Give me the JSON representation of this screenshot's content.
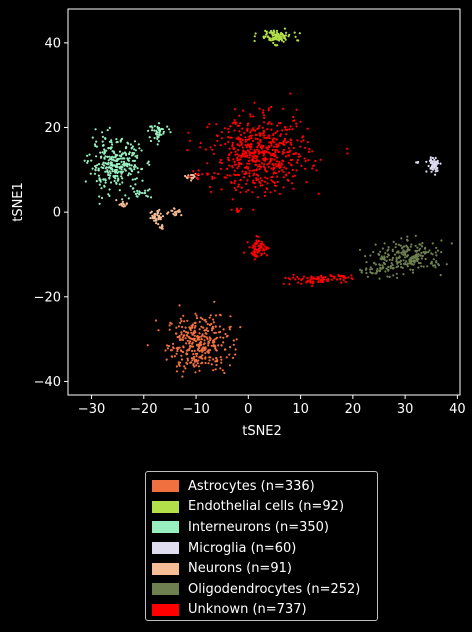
{
  "chart_data": {
    "type": "scatter",
    "xlabel": "tSNE2",
    "ylabel": "tSNE1",
    "xlim": [
      -34.5,
      40.5
    ],
    "ylim": [
      -43.2,
      48.0
    ],
    "xticks": [
      -30,
      -20,
      -10,
      0,
      10,
      20,
      30,
      40
    ],
    "yticks": [
      -40,
      -20,
      0,
      20,
      40
    ],
    "xtick_labels": [
      "−30",
      "−20",
      "−10",
      "0",
      "10",
      "20",
      "30",
      "40"
    ],
    "ytick_labels": [
      "−40",
      "−20",
      "0",
      "20",
      "40"
    ],
    "grid": false,
    "legend_position": "below",
    "series": [
      {
        "name": "Astrocytes (n=336)",
        "color": "#f07040",
        "clusters": [
          {
            "cx": -9.5,
            "cy": -31.0,
            "sx": 3.0,
            "sy": 3.3,
            "n": 336
          }
        ]
      },
      {
        "name": "Endothelial cells (n=92)",
        "color": "#b3e04a",
        "clusters": [
          {
            "cx": 5.2,
            "cy": 41.5,
            "sx": 1.6,
            "sy": 0.8,
            "n": 92
          }
        ]
      },
      {
        "name": "Interneurons (n=350)",
        "color": "#98f0c0",
        "clusters": [
          {
            "cx": -25.5,
            "cy": 11.0,
            "sx": 2.5,
            "sy": 3.0,
            "n": 290
          },
          {
            "cx": -17.0,
            "cy": 19.0,
            "sx": 1.0,
            "sy": 0.9,
            "n": 42
          },
          {
            "cx": -20.5,
            "cy": 4.5,
            "sx": 1.0,
            "sy": 0.5,
            "n": 18
          }
        ]
      },
      {
        "name": "Microglia (n=60)",
        "color": "#e0dcf0",
        "clusters": [
          {
            "cx": 35.5,
            "cy": 11.2,
            "sx": 0.6,
            "sy": 0.9,
            "n": 56
          },
          {
            "cx": 32.5,
            "cy": 11.5,
            "sx": 0.2,
            "sy": 0.3,
            "n": 4
          }
        ]
      },
      {
        "name": "Neurons (n=91)",
        "color": "#f5bc96",
        "clusters": [
          {
            "cx": -17.5,
            "cy": -1.0,
            "sx": 0.7,
            "sy": 0.9,
            "n": 36
          },
          {
            "cx": -14.0,
            "cy": 0.2,
            "sx": 0.6,
            "sy": 0.5,
            "n": 18
          },
          {
            "cx": -24.0,
            "cy": 2.0,
            "sx": 0.6,
            "sy": 0.4,
            "n": 12
          },
          {
            "cx": -16.5,
            "cy": -3.5,
            "sx": 0.2,
            "sy": 0.8,
            "n": 8
          },
          {
            "cx": -11.0,
            "cy": 8.5,
            "sx": 0.7,
            "sy": 0.3,
            "n": 17
          }
        ]
      },
      {
        "name": "Oligodendrocytes (n=252)",
        "color": "#6e7f50",
        "clusters": [
          {
            "cx": 31.0,
            "cy": -10.5,
            "sx": 3.2,
            "sy": 1.8,
            "n": 200
          },
          {
            "cx": 25.0,
            "cy": -13.5,
            "sx": 2.2,
            "sy": 0.9,
            "n": 52
          }
        ]
      },
      {
        "name": "Unknown (n=737)",
        "color": "#ff0000",
        "clusters": [
          {
            "cx": 2.5,
            "cy": 13.5,
            "sx": 4.6,
            "sy": 4.4,
            "n": 560
          },
          {
            "cx": 2.0,
            "cy": -8.5,
            "sx": 0.9,
            "sy": 1.1,
            "n": 65
          },
          {
            "cx": 12.0,
            "cy": -16.0,
            "sx": 3.0,
            "sy": 0.5,
            "n": 70
          },
          {
            "cx": -8.5,
            "cy": 8.8,
            "sx": 2.0,
            "sy": 0.6,
            "n": 14
          },
          {
            "cx": -2.0,
            "cy": 0.5,
            "sx": 0.5,
            "sy": 0.3,
            "n": 8
          },
          {
            "cx": 18.0,
            "cy": -15.2,
            "sx": 1.5,
            "sy": 0.3,
            "n": 20
          }
        ]
      }
    ]
  }
}
